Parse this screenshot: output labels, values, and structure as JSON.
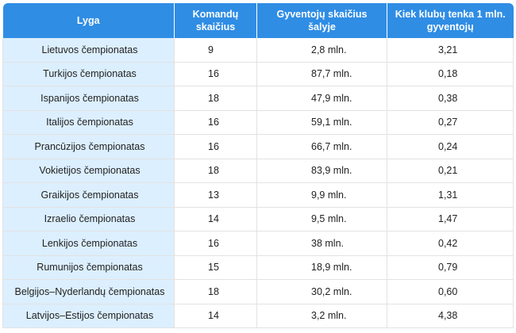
{
  "table": {
    "headers": [
      "Lyga",
      "Komandų skaičius",
      "Gyventojų skaičius šalyje",
      "Kiek klubų tenka 1 mln. gyventojų"
    ],
    "rows": [
      [
        "Lietuvos čempionatas",
        "9",
        "2,8 mln.",
        "3,21"
      ],
      [
        "Turkijos čempionatas",
        "16",
        "87,7 mln.",
        "0,18"
      ],
      [
        "Ispanijos čempionatas",
        "18",
        "47,9 mln.",
        "0,38"
      ],
      [
        "Italijos čempionatas",
        "16",
        "59,1 mln.",
        "0,27"
      ],
      [
        "Prancūzijos čempionatas",
        "16",
        "66,7 mln.",
        "0,24"
      ],
      [
        "Vokietijos čempionatas",
        "18",
        "83,9 mln.",
        "0,21"
      ],
      [
        "Graikijos čempionatas",
        "13",
        "9,9 mln.",
        "1,31"
      ],
      [
        "Izraelio čempionatas",
        "14",
        "9,5 mln.",
        "1,47"
      ],
      [
        "Lenkijos čempionatas",
        "16",
        "38 mln.",
        "0,42"
      ],
      [
        "Rumunijos čempionatas",
        "15",
        "18,9 mln.",
        "0,79"
      ],
      [
        "Belgijos–Nyderlandų čempionatas",
        "18",
        "30,2 mln.",
        "0,60"
      ],
      [
        "Latvijos–Estijos čempionatas",
        "14",
        "3,2 mln.",
        "4,38"
      ]
    ]
  },
  "colors": {
    "header_bg": "#2f8de4",
    "first_col_bg": "#dcefff"
  }
}
